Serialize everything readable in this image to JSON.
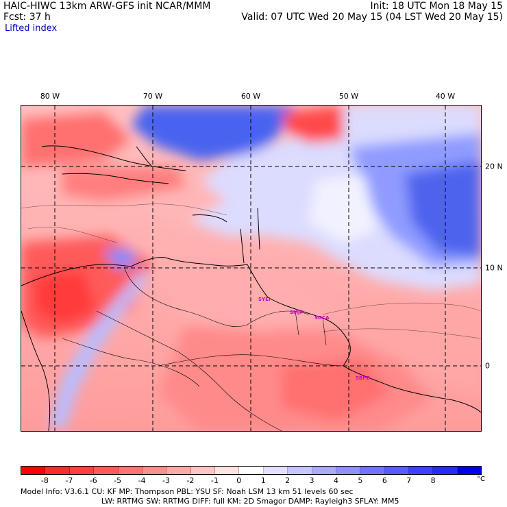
{
  "header": {
    "title_left": "HAIC-HIWC 13km ARW-GFS init    NCAR/MMM",
    "title_right": "Init: 18 UTC Mon 18 May 15",
    "forecast": "Fcst:   37 h",
    "valid": "Valid: 07 UTC Wed 20 May 15 (04 LST Wed 20 May 15)",
    "field": "Lifted index"
  },
  "map": {
    "lon_labels": [
      "80 W",
      "70 W",
      "60 W",
      "50 W",
      "40 W"
    ],
    "lat_labels": [
      "20 N",
      "10 N",
      "0"
    ],
    "stations": [
      "SYEI",
      "SMJP",
      "SOCA",
      "SBPE"
    ]
  },
  "colorbar": {
    "ticks": [
      "-8",
      "-7",
      "-6",
      "-5",
      "-4",
      "-3",
      "-2",
      "-1",
      "0",
      "1",
      "2",
      "3",
      "4",
      "5",
      "6",
      "7",
      "8"
    ],
    "unit": "°C",
    "colors": [
      "#ff0000",
      "#ff2a2a",
      "#ff4040",
      "#ff5a5a",
      "#ff7373",
      "#ff8f8f",
      "#ffaaaa",
      "#ffc6c6",
      "#ffe2e2",
      "#ffffff",
      "#e2e2ff",
      "#c6c6ff",
      "#aaaaff",
      "#8f8fff",
      "#7373ff",
      "#5a5aff",
      "#4040ff",
      "#2a2aff",
      "#0000ee"
    ]
  },
  "footer": {
    "line1": "Model Info: V3.6.1    CU: KF      MP: Thompson     PBL: YSU       SF: Noah LSM      13 km    51 levels   60 sec",
    "line2": "LW: RRTMG    SW: RRTMG   DIFF: full    KM: 2D Smagor DAMP: Rayleigh3   SFLAY: MM5"
  }
}
